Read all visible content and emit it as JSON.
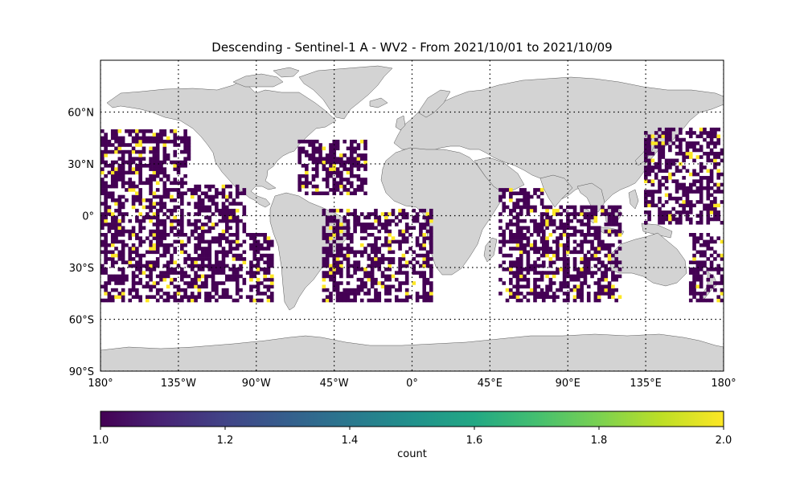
{
  "title": "Descending - Sentinel-1 A - WV2 - From 2021/10/01 to 2021/10/09",
  "map": {
    "projection": "PlateCarree",
    "land_color": "#d3d3d3",
    "ocean_color": "#ffffff",
    "gridlines": "dotted",
    "lon_ticks": [
      {
        "value": -180,
        "label": "180°"
      },
      {
        "value": -135,
        "label": "135°W"
      },
      {
        "value": -90,
        "label": "90°W"
      },
      {
        "value": -45,
        "label": "45°W"
      },
      {
        "value": 0,
        "label": "0°"
      },
      {
        "value": 45,
        "label": "45°E"
      },
      {
        "value": 90,
        "label": "90°E"
      },
      {
        "value": 135,
        "label": "135°E"
      },
      {
        "value": 180,
        "label": "180°"
      }
    ],
    "lat_ticks": [
      {
        "value": 60,
        "label": "60°N"
      },
      {
        "value": 30,
        "label": "30°N"
      },
      {
        "value": 0,
        "label": "0°"
      },
      {
        "value": -30,
        "label": "30°S"
      },
      {
        "value": -60,
        "label": "60°S"
      },
      {
        "value": -90,
        "label": "90°S"
      }
    ],
    "extent": {
      "lon": [
        -180,
        180
      ],
      "lat": [
        -90,
        90
      ]
    },
    "cell_size_deg": 2,
    "count_swaths": [
      {
        "region": "North Pacific east",
        "lon": [
          -180,
          -128
        ],
        "lat": [
          -50,
          50
        ]
      },
      {
        "region": "East Pacific",
        "lon": [
          -128,
          -96
        ],
        "lat": [
          -50,
          18
        ]
      },
      {
        "region": "Southeast Pacific",
        "lon": [
          -96,
          -80
        ],
        "lat": [
          -50,
          -10
        ]
      },
      {
        "region": "North Atlantic",
        "lon": [
          -66,
          -26
        ],
        "lat": [
          12,
          44
        ]
      },
      {
        "region": "South Atlantic",
        "lon": [
          -52,
          12
        ],
        "lat": [
          -50,
          4
        ]
      },
      {
        "region": "Indian Ocean west",
        "lon": [
          50,
          75
        ],
        "lat": [
          -50,
          15
        ]
      },
      {
        "region": "Indian Ocean east",
        "lon": [
          75,
          120
        ],
        "lat": [
          -50,
          5
        ]
      },
      {
        "region": "West Pacific",
        "lon": [
          134,
          180
        ],
        "lat": [
          -5,
          50
        ]
      },
      {
        "region": "Tasman Sea",
        "lon": [
          160,
          180
        ],
        "lat": [
          -50,
          -10
        ]
      }
    ]
  },
  "chart_data": {
    "type": "heatmap",
    "title": "Descending - Sentinel-1 A - WV2 - From 2021/10/01 to 2021/10/09",
    "variable": "count",
    "values_present": [
      1,
      2
    ],
    "colormap": "viridis",
    "color_range": [
      1.0,
      2.0
    ],
    "color_low": "#440154",
    "color_high": "#fde725",
    "fraction_value_2": 0.08
  },
  "colorbar": {
    "label": "count",
    "ticks": [
      "1.0",
      "1.2",
      "1.4",
      "1.6",
      "1.8",
      "2.0"
    ],
    "tick_values": [
      1.0,
      1.2,
      1.4,
      1.6,
      1.8,
      2.0
    ]
  }
}
